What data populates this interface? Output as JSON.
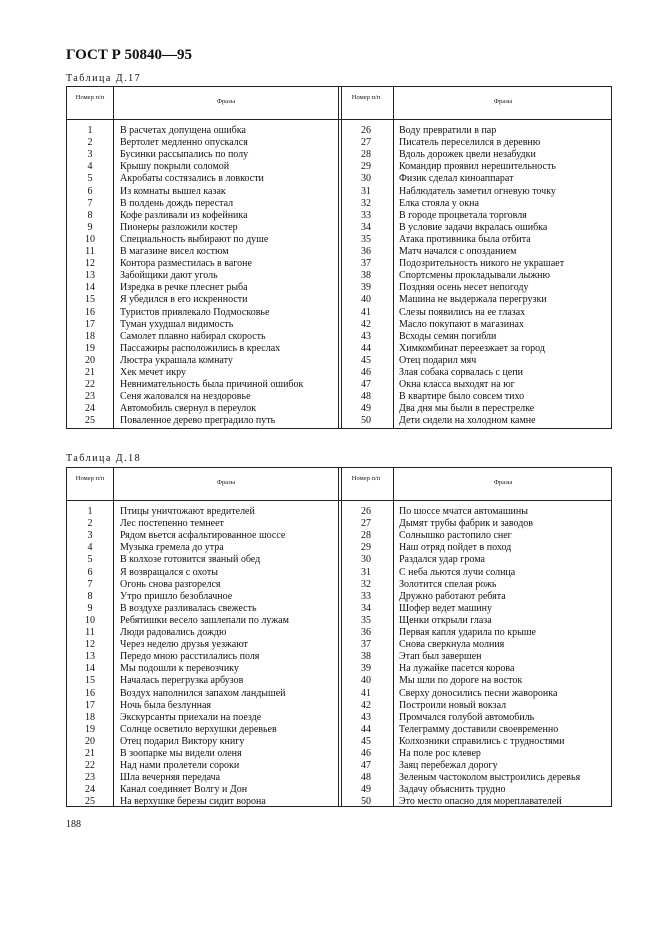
{
  "header": {
    "title": "ГОСТ Р 50840—95"
  },
  "tables": [
    {
      "caption": "Таблица Д.17",
      "col_num": "Номер п/п",
      "col_phrase": "Фразы",
      "rows_left": [
        [
          "1",
          "В расчетах допущена ошибка"
        ],
        [
          "2",
          "Вертолет медленно опускался"
        ],
        [
          "3",
          "Бусинки рассыпались по полу"
        ],
        [
          "4",
          "Крышу покрыли соломой"
        ],
        [
          "5",
          "Акробаты состязались в ловкости"
        ],
        [
          "6",
          "Из комнаты вышел казак"
        ],
        [
          "7",
          "В полдень дождь перестал"
        ],
        [
          "8",
          "Кофе разливали из кофейника"
        ],
        [
          "9",
          "Пионеры разложили костер"
        ],
        [
          "10",
          "Специальность выбирают по душе"
        ],
        [
          "11",
          "В магазине висел костюм"
        ],
        [
          "12",
          "Контора разместилась в вагоне"
        ],
        [
          "13",
          "Забойщики дают уголь"
        ],
        [
          "14",
          "Изредка в речке плеснет рыба"
        ],
        [
          "15",
          "Я убедился в его искренности"
        ],
        [
          "16",
          "Туристов привлекало Подмосковье"
        ],
        [
          "17",
          "Туман ухудшал видимость"
        ],
        [
          "18",
          "Самолет плавно набирал скорость"
        ],
        [
          "19",
          "Пассажиры расположились в креслах"
        ],
        [
          "20",
          "Люстра украшала комнату"
        ],
        [
          "21",
          "Хек мечет икру"
        ],
        [
          "22",
          "Невнимательность была причиной ошибок"
        ],
        [
          "23",
          "Сеня жаловался на нездоровье"
        ],
        [
          "24",
          "Автомобиль свернул в переулок"
        ],
        [
          "25",
          "Поваленное дерево преградило путь"
        ]
      ],
      "rows_right": [
        [
          "26",
          "Воду превратили в пар"
        ],
        [
          "27",
          "Писатель переселился в деревню"
        ],
        [
          "28",
          "Вдоль дорожек цвели незабудки"
        ],
        [
          "29",
          "Командир проявил нерешительность"
        ],
        [
          "30",
          "Физик сделал киноаппарат"
        ],
        [
          "31",
          "Наблюдатель заметил огневую точку"
        ],
        [
          "32",
          "Елка стояла у окна"
        ],
        [
          "33",
          "В городе процветала торговля"
        ],
        [
          "34",
          "В условие задачи вкралась ошибка"
        ],
        [
          "35",
          "Атака противника была отбита"
        ],
        [
          "36",
          "Матч начался с опозданием"
        ],
        [
          "37",
          "Подозрительность никого не украшает"
        ],
        [
          "38",
          "Спортсмены прокладывали лыжню"
        ],
        [
          "39",
          "Поздняя осень несет непогоду"
        ],
        [
          "40",
          "Машина не выдержала перегрузки"
        ],
        [
          "41",
          "Слезы появились на ее глазах"
        ],
        [
          "42",
          "Масло покупают в магазинах"
        ],
        [
          "43",
          "Всходы семян погибли"
        ],
        [
          "44",
          "Химкомбинат переезжает за город"
        ],
        [
          "45",
          "Отец подарил мяч"
        ],
        [
          "46",
          "Злая собака сорвалась с цепи"
        ],
        [
          "47",
          "Окна класса выходят на юг"
        ],
        [
          "48",
          "В квартире было совсем тихо"
        ],
        [
          "49",
          "Два дня мы были в перестрелке"
        ],
        [
          "50",
          "Дети сидели на холодном камне"
        ]
      ]
    },
    {
      "caption": "Таблица Д.18",
      "col_num": "Номер п/п",
      "col_phrase": "Фразы",
      "rows_left": [
        [
          "1",
          "Птицы уничтожают вредителей"
        ],
        [
          "2",
          "Лес постепенно темнеет"
        ],
        [
          "3",
          "Рядом вьется асфальтированное шоссе"
        ],
        [
          "4",
          "Музыка гремела до утра"
        ],
        [
          "5",
          "В колхозе готовится званый обед"
        ],
        [
          "6",
          "Я возвращался с охоты"
        ],
        [
          "7",
          "Огонь снова разгорелся"
        ],
        [
          "8",
          "Утро пришло безоблачное"
        ],
        [
          "9",
          "В воздухе разливалась свежесть"
        ],
        [
          "10",
          "Ребятишки весело зашлепали по лужам"
        ],
        [
          "11",
          "Люди радовались дождю"
        ],
        [
          "12",
          "Через неделю друзья уезжают"
        ],
        [
          "13",
          "Передо мною расстилались поля"
        ],
        [
          "14",
          "Мы подошли к перевозчику"
        ],
        [
          "15",
          "Началась перегрузка арбузов"
        ],
        [
          "16",
          "Воздух наполнился запахом ландышей"
        ],
        [
          "17",
          "Ночь была безлунная"
        ],
        [
          "18",
          "Экскурсанты приехали на поезде"
        ],
        [
          "19",
          "Солнце осветило верхушки деревьев"
        ],
        [
          "20",
          "Отец подарил Виктору книгу"
        ],
        [
          "21",
          "В зоопарке мы видели оленя"
        ],
        [
          "22",
          "Над нами пролетели сороки"
        ],
        [
          "23",
          "Шла вечерняя передача"
        ],
        [
          "24",
          "Канал соединяет Волгу и Дон"
        ],
        [
          "25",
          "На верхушке березы сидит ворона"
        ]
      ],
      "rows_right": [
        [
          "26",
          "По шоссе мчатся автомашины"
        ],
        [
          "27",
          "Дымят трубы фабрик и заводов"
        ],
        [
          "28",
          "Солнышко растопило снег"
        ],
        [
          "29",
          "Наш отряд пойдет в поход"
        ],
        [
          "30",
          "Раздался удар грома"
        ],
        [
          "31",
          "С неба льются лучи солнца"
        ],
        [
          "32",
          "Золотится спелая рожь"
        ],
        [
          "33",
          "Дружно работают ребята"
        ],
        [
          "34",
          "Шофер ведет машину"
        ],
        [
          "35",
          "Щенки открыли глаза"
        ],
        [
          "36",
          "Первая капля ударила по крыше"
        ],
        [
          "37",
          "Снова сверкнула молния"
        ],
        [
          "38",
          "Этап был завершен"
        ],
        [
          "39",
          "На лужайке пасется корова"
        ],
        [
          "40",
          "Мы шли по дороге на восток"
        ],
        [
          "41",
          "Сверху доносились песни жаворонка"
        ],
        [
          "42",
          "Построили новый вокзал"
        ],
        [
          "43",
          "Промчался голубой автомобиль"
        ],
        [
          "44",
          "Телеграмму доставили своевременно"
        ],
        [
          "45",
          "Колхозники справились с трудностями"
        ],
        [
          "46",
          "На поле рос клевер"
        ],
        [
          "47",
          "Заяц перебежал дорогу"
        ],
        [
          "48",
          "Зеленым частоколом выстроились деревья"
        ],
        [
          "49",
          "Задачу объяснить трудно"
        ],
        [
          "50",
          "Это место опасно для мореплавателей"
        ]
      ]
    }
  ],
  "footer": {
    "page_number": "188"
  }
}
